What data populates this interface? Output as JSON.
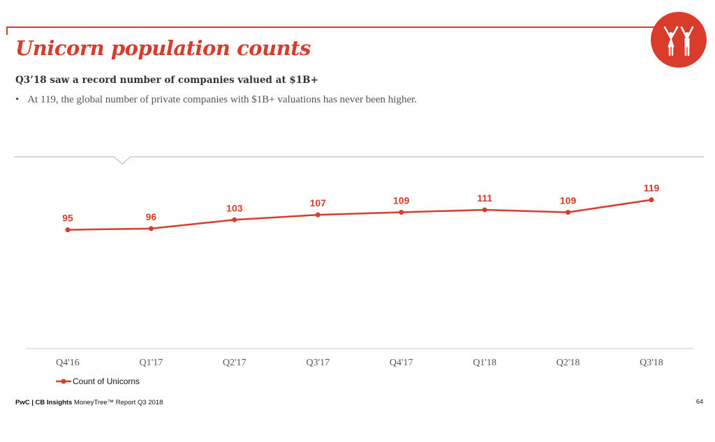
{
  "header": {
    "title": "Unicorn population counts",
    "subtitle": "Q3’18 saw a record number of companies valued at $1B+",
    "bullet": "At 119, the global number of private companies with $1B+ valuations has never been higher.",
    "logo_icon": "people-celebrating-icon"
  },
  "chart_data": {
    "type": "line",
    "categories": [
      "Q4'16",
      "Q1'17",
      "Q2'17",
      "Q3'17",
      "Q4'17",
      "Q1'18",
      "Q2'18",
      "Q3'18"
    ],
    "series": [
      {
        "name": "Count of Unicorns",
        "values": [
          95,
          96,
          103,
          107,
          109,
          111,
          109,
          119
        ],
        "color": "#d93c2b"
      }
    ],
    "ylim": [
      0,
      150
    ],
    "grid": false,
    "data_labels": true,
    "legend": "bottom-left"
  },
  "footer": {
    "brand": "PwC | CB Insights",
    "text": " MoneyTree™ Report Q3 2018",
    "page": "64"
  },
  "colors": {
    "accent": "#d93c2b"
  }
}
